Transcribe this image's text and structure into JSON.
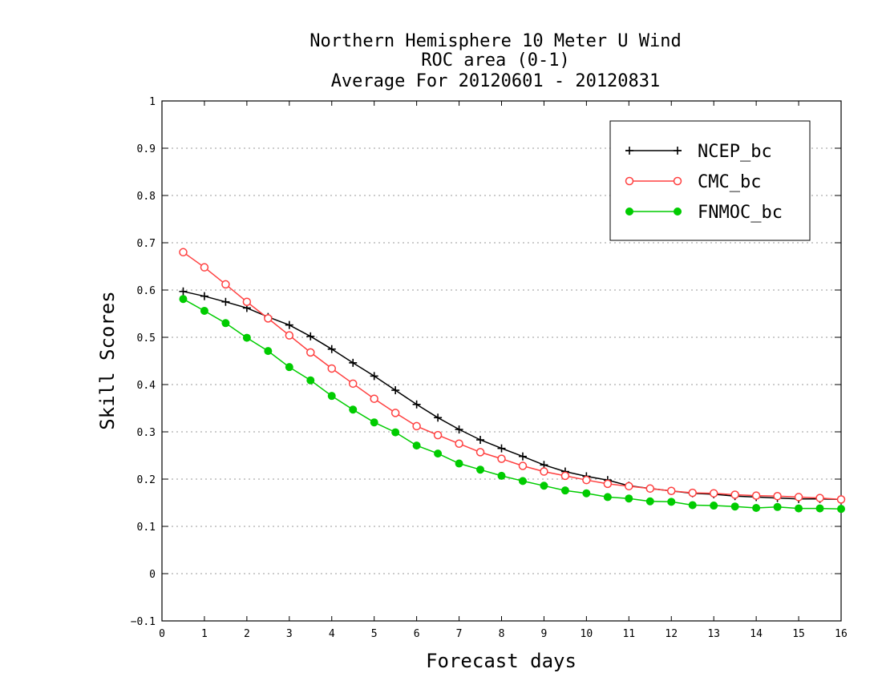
{
  "chart_data": {
    "type": "line",
    "title_lines": [
      "Northern Hemisphere 10 Meter U Wind",
      "ROC area (0-1)",
      "Average For 20120601 - 20120831"
    ],
    "xlabel": "Forecast days",
    "ylabel": "Skill Scores",
    "xlim": [
      0,
      16
    ],
    "ylim": [
      -0.1,
      1
    ],
    "x_ticks": [
      "0",
      "1",
      "2",
      "3",
      "4",
      "5",
      "6",
      "7",
      "8",
      "9",
      "10",
      "11",
      "12",
      "13",
      "14",
      "15",
      "16"
    ],
    "y_ticks": [
      "−0.1",
      "0",
      "0.1",
      "0.2",
      "0.3",
      "0.4",
      "0.5",
      "0.6",
      "0.7",
      "0.8",
      "0.9",
      "1"
    ],
    "grid": "dotted horizontal",
    "legend_position": "top-right",
    "x": [
      0.5,
      1,
      1.5,
      2,
      2.5,
      3,
      3.5,
      4,
      4.5,
      5,
      5.5,
      6,
      6.5,
      7,
      7.5,
      8,
      8.5,
      9,
      9.5,
      10,
      10.5,
      11,
      11.5,
      12,
      12.5,
      13,
      13.5,
      14,
      14.5,
      15,
      15.5,
      16
    ],
    "series": [
      {
        "name": "NCEP_bc",
        "color": "#000000",
        "marker": "plus",
        "values": [
          0.597,
          0.587,
          0.575,
          0.562,
          0.543,
          0.526,
          0.502,
          0.475,
          0.446,
          0.418,
          0.388,
          0.358,
          0.33,
          0.305,
          0.283,
          0.265,
          0.248,
          0.23,
          0.216,
          0.206,
          0.198,
          0.186,
          0.18,
          0.175,
          0.17,
          0.168,
          0.164,
          0.162,
          0.16,
          0.158,
          0.158,
          0.157
        ]
      },
      {
        "name": "CMC_bc",
        "color": "#ff4040",
        "marker": "open-circle",
        "values": [
          0.68,
          0.648,
          0.612,
          0.575,
          0.54,
          0.504,
          0.468,
          0.434,
          0.402,
          0.37,
          0.34,
          0.312,
          0.293,
          0.275,
          0.257,
          0.243,
          0.228,
          0.216,
          0.207,
          0.198,
          0.19,
          0.185,
          0.18,
          0.175,
          0.171,
          0.17,
          0.167,
          0.165,
          0.164,
          0.162,
          0.16,
          0.157
        ]
      },
      {
        "name": "FNMOC_bc",
        "color": "#00cc00",
        "marker": "filled-circle",
        "values": [
          0.581,
          0.556,
          0.53,
          0.499,
          0.471,
          0.437,
          0.409,
          0.376,
          0.347,
          0.32,
          0.299,
          0.271,
          0.254,
          0.233,
          0.22,
          0.207,
          0.196,
          0.186,
          0.176,
          0.17,
          0.162,
          0.159,
          0.153,
          0.152,
          0.145,
          0.144,
          0.142,
          0.139,
          0.141,
          0.138,
          0.138,
          0.137
        ]
      }
    ]
  }
}
